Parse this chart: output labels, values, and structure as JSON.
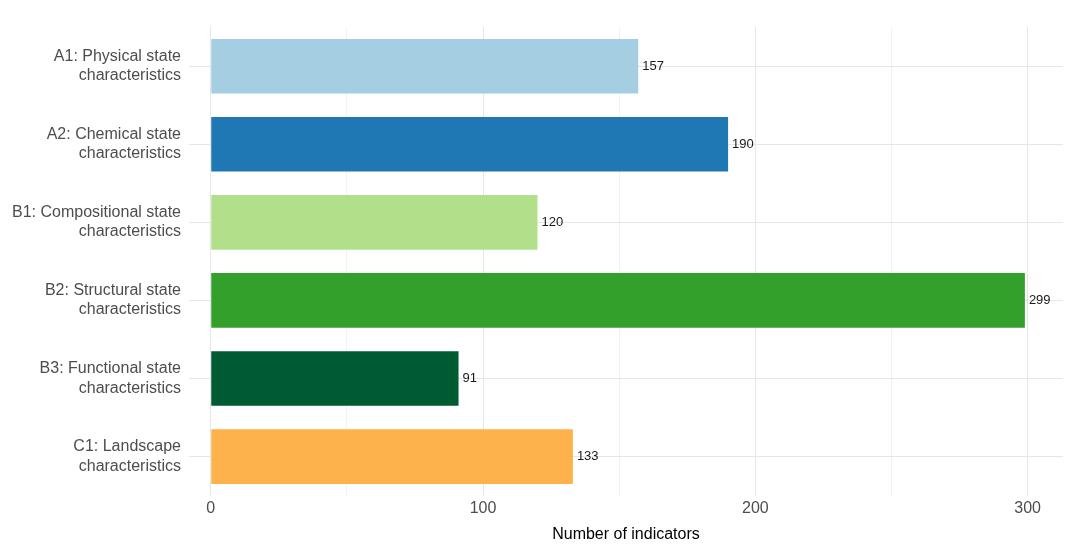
{
  "chart_data": {
    "type": "bar",
    "orientation": "horizontal",
    "xlabel": "Number of indicators",
    "categories": [
      "A1: Physical state characteristics",
      "A2: Chemical state characteristics",
      "B1: Compositional state characteristics",
      "B2: Structural state characteristics",
      "B3: Functional state characteristics",
      "C1: Landscape characteristics"
    ],
    "values": [
      157,
      190,
      120,
      299,
      91,
      133
    ],
    "colors": [
      "#a6cee3",
      "#1f78b4",
      "#b2df8a",
      "#33a02c",
      "#005a32",
      "#fdb24c"
    ],
    "xlim": [
      -8,
      313
    ],
    "xticks": [
      0,
      {
        "value": 50,
        "label": null
      },
      100,
      {
        "value": 150,
        "label": null
      },
      200,
      {
        "value": 250,
        "label": null
      },
      300
    ],
    "grid": true,
    "data_labels": true
  }
}
